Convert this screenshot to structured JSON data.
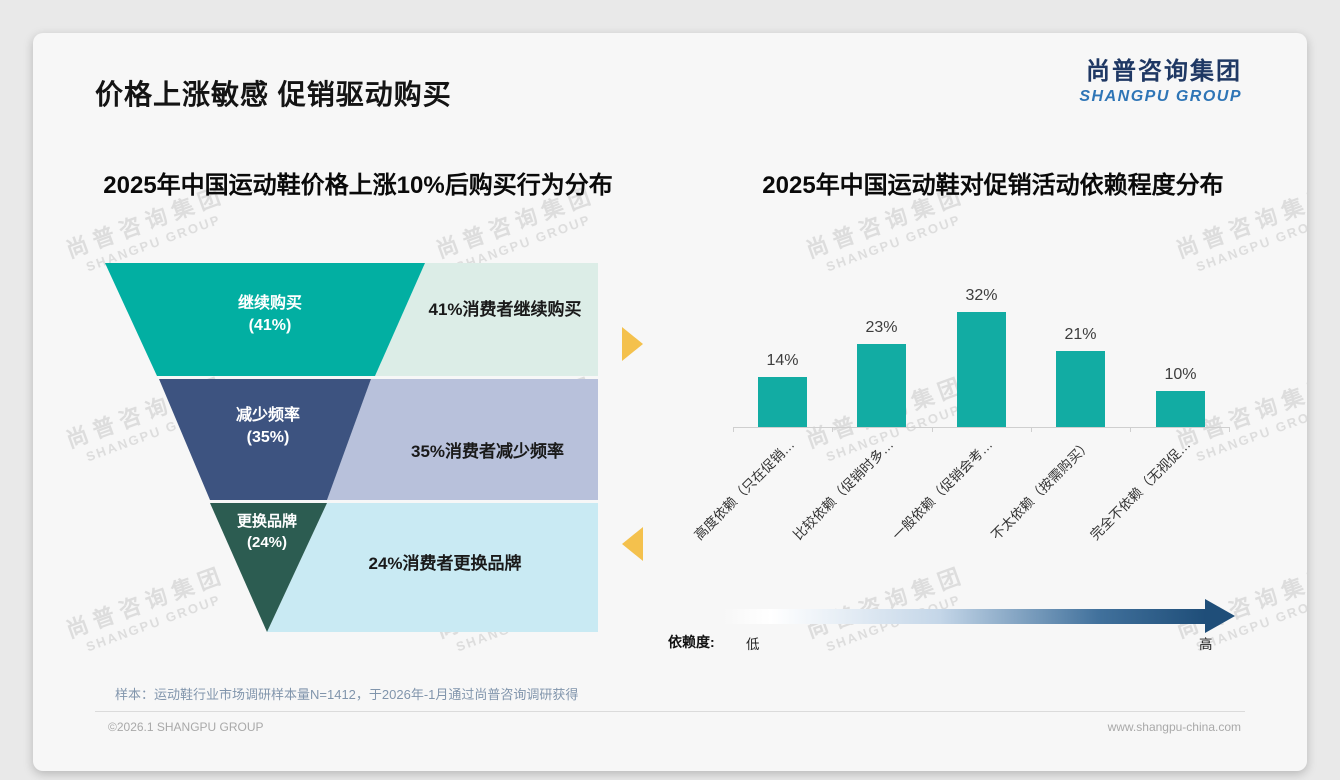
{
  "slide": {
    "title": "价格上涨敏感 促销驱动购买",
    "logo_cn": "尚普咨询集团",
    "logo_en": "SHANGPU GROUP",
    "watermark_cn": "尚普咨询集团",
    "watermark_en": "SHANGPU GROUP",
    "footnote": "样本：运动鞋行业市场调研样本量N=1412，于2026年-1月通过尚普咨询调研获得",
    "copyright": "©2026.1 SHANGPU GROUP",
    "website": "www.shangpu-china.com"
  },
  "dependence_scale": {
    "label": "依赖度:",
    "low": "低",
    "high": "高"
  },
  "colors": {
    "funnel_teal": "#02AFA2",
    "funnel_navy": "#3D5380",
    "funnel_green": "#2C5C51",
    "panel_mint": "#DCEDE7",
    "panel_periwinkle": "#B8C1DB",
    "panel_cyan": "#C9EAF3",
    "bar_teal": "#12ACA3",
    "arrow_amber": "#F4C14D",
    "gradient_navy": "#1F4E79",
    "logo_blue": "#2E75B6"
  },
  "chart_data": [
    {
      "type": "funnel",
      "title": "2025年中国运动鞋价格上涨10%后购买行为分布",
      "levels": [
        {
          "label": "继续购买",
          "value": 41,
          "value_text": "(41%)",
          "annotation": "41%消费者继续购买"
        },
        {
          "label": "减少频率",
          "value": 35,
          "value_text": "(35%)",
          "annotation": "35%消费者减少频率"
        },
        {
          "label": "更换品牌",
          "value": 24,
          "value_text": "(24%)",
          "annotation": "24%消费者更换品牌"
        }
      ]
    },
    {
      "type": "bar",
      "title": "2025年中国运动鞋对促销活动依赖程度分布",
      "categories": [
        "高度依赖（只在促销…",
        "比较依赖（促销时多…",
        "一般依赖（促销会考…",
        "不太依赖（按需购买）",
        "完全不依赖（无视促…"
      ],
      "values": [
        14,
        23,
        32,
        21,
        10
      ],
      "data_labels": [
        "14%",
        "23%",
        "32%",
        "21%",
        "10%"
      ],
      "ylabel": "",
      "xlabel": "",
      "ylim": [
        0,
        40
      ],
      "grid": false,
      "legend": "none"
    }
  ]
}
